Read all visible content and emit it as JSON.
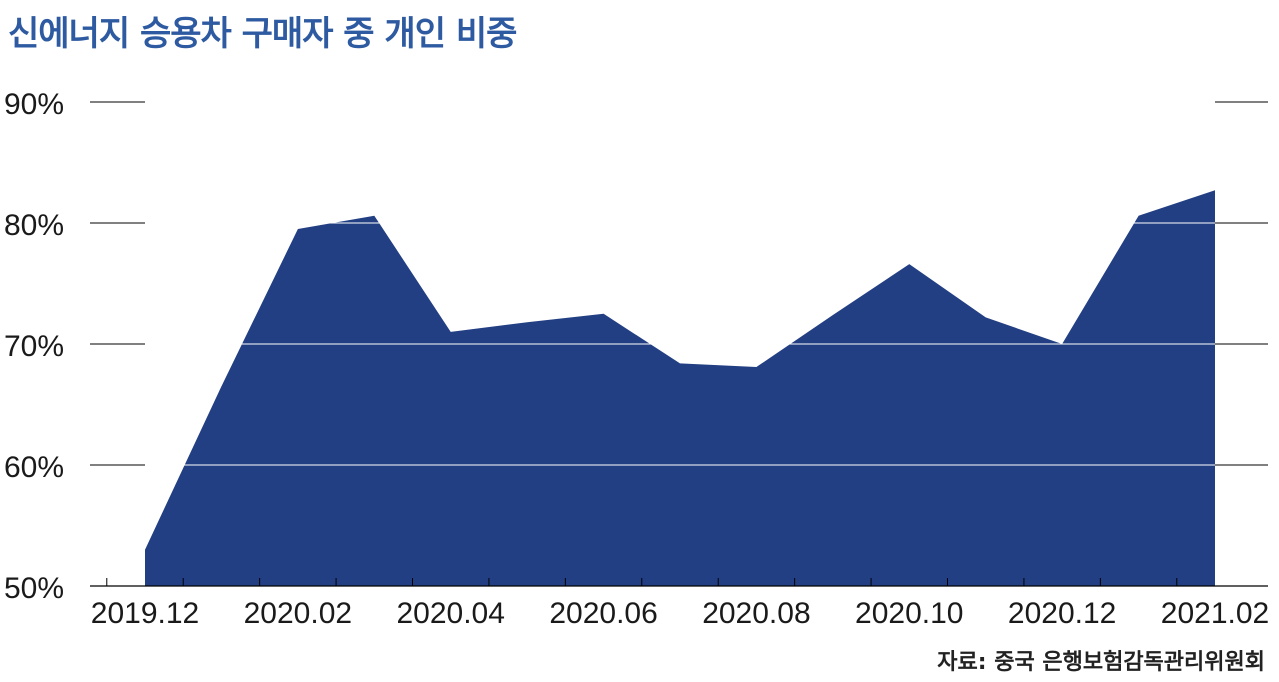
{
  "chart_data": {
    "type": "area",
    "title": "신에너지 승용차 구매자 중 개인 비중",
    "x": [
      "2019.12",
      "2020.01",
      "2020.02",
      "2020.03",
      "2020.04",
      "2020.05",
      "2020.06",
      "2020.07",
      "2020.08",
      "2020.09",
      "2020.10",
      "2020.11",
      "2020.12",
      "2021.01",
      "2021.02"
    ],
    "values": [
      53.0,
      66.5,
      79.5,
      80.6,
      71.0,
      71.8,
      72.5,
      68.4,
      68.1,
      72.4,
      76.6,
      72.2,
      70.0,
      80.6,
      82.7
    ],
    "x_tick_labels": [
      "2019.12",
      "2020.02",
      "2020.04",
      "2020.06",
      "2020.08",
      "2020.10",
      "2020.12",
      "2021.02"
    ],
    "y_tick_labels": [
      "50%",
      "60%",
      "70%",
      "80%",
      "90%"
    ],
    "y_ticks": [
      50,
      60,
      70,
      80,
      90
    ],
    "ylim": [
      50,
      90
    ],
    "grid": true,
    "area_color": "#233f83",
    "source": "자료: 중국 은행보험감독관리위원회"
  }
}
